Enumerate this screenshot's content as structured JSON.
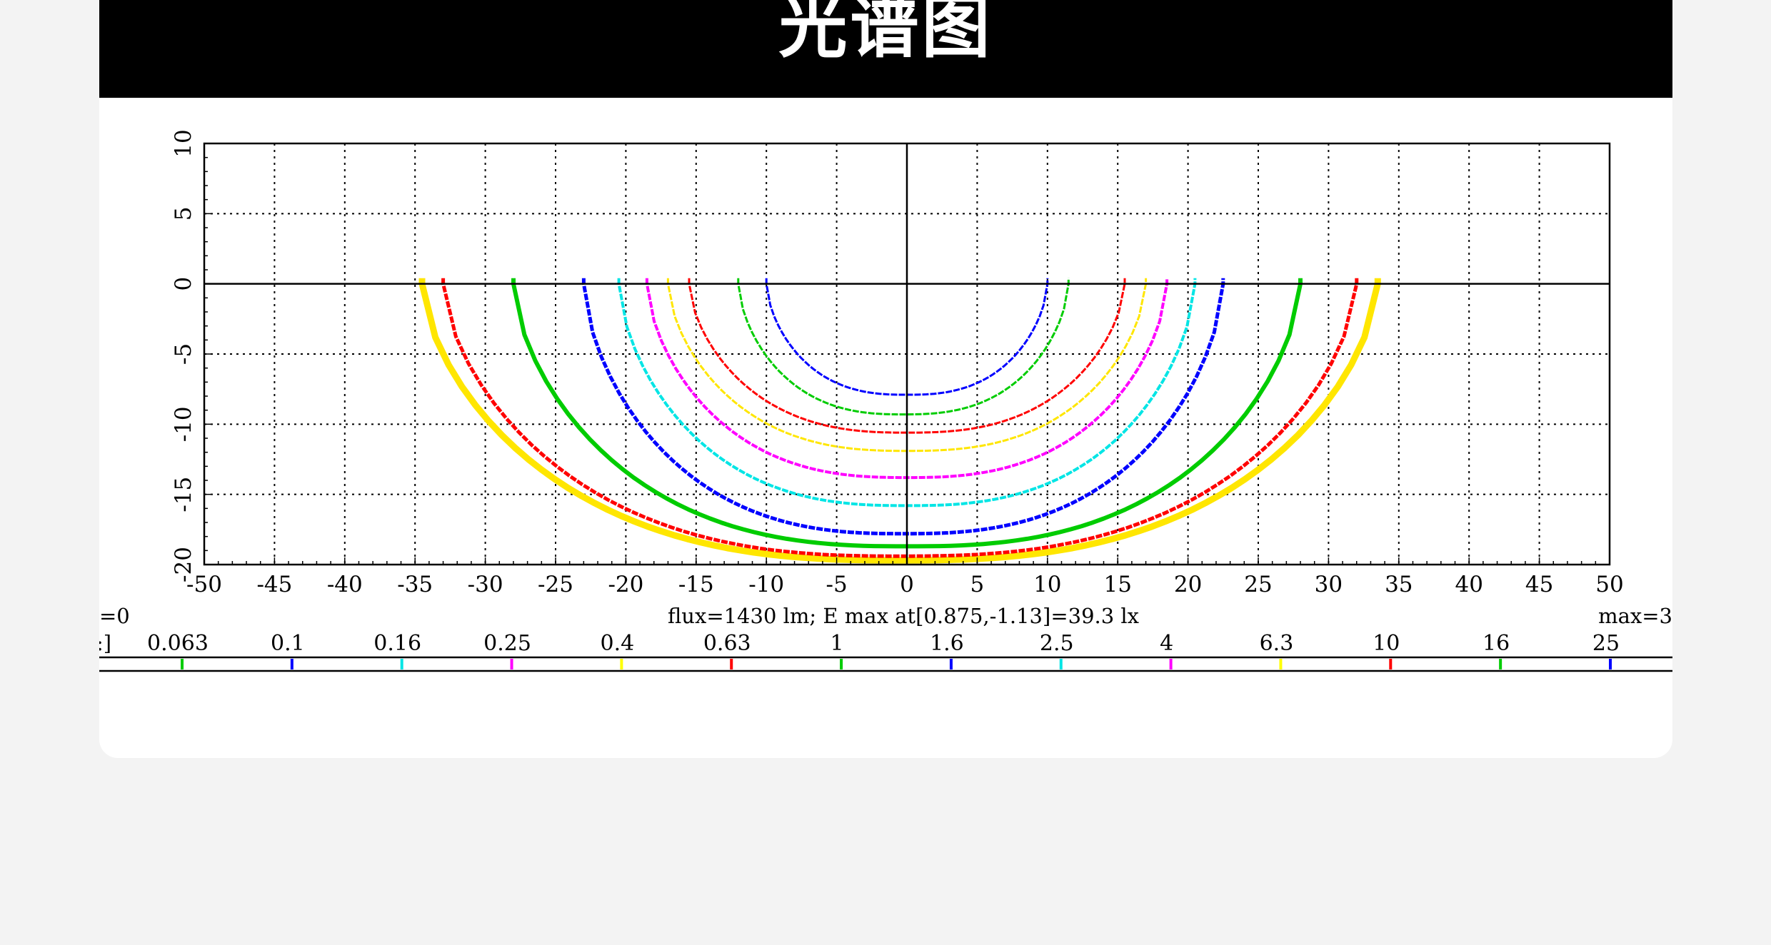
{
  "header": {
    "title": "光谱图"
  },
  "chart_data": {
    "type": "contour",
    "xlim": [
      -50,
      50
    ],
    "ylim": [
      -20,
      10
    ],
    "x_ticks": [
      -50,
      -45,
      -40,
      -35,
      -30,
      -25,
      -20,
      -15,
      -10,
      -5,
      0,
      5,
      10,
      15,
      20,
      25,
      30,
      35,
      40,
      45,
      50
    ],
    "y_ticks": [
      -20,
      -15,
      -10,
      -5,
      0,
      5,
      10
    ],
    "grid": true,
    "info_left": "=0",
    "info_center": "flux=1430 lm; E max at[0.875,-1.13]=39.3 lx",
    "info_right": "max=3",
    "legend_prefix": ":]",
    "legend_levels": [
      {
        "label": "0.063",
        "color": "#00cc00"
      },
      {
        "label": "0.1",
        "color": "#0000ff"
      },
      {
        "label": "0.16",
        "color": "#00e5e5"
      },
      {
        "label": "0.25",
        "color": "#ff00ff"
      },
      {
        "label": "0.4",
        "color": "#ffff00"
      },
      {
        "label": "0.63",
        "color": "#ff0000"
      },
      {
        "label": "1",
        "color": "#00cc00"
      },
      {
        "label": "1.6",
        "color": "#0000ff"
      },
      {
        "label": "2.5",
        "color": "#00e5e5"
      },
      {
        "label": "4",
        "color": "#ff00ff"
      },
      {
        "label": "6.3",
        "color": "#ffff00"
      },
      {
        "label": "10",
        "color": "#ff0000"
      },
      {
        "label": "16",
        "color": "#00cc00"
      },
      {
        "label": "25",
        "color": "#0000ff"
      }
    ],
    "contours": [
      {
        "color": "#ffe600",
        "x_extent": [
          -34.5,
          33.5
        ],
        "y_bottom": -19.7,
        "width": 9
      },
      {
        "color": "#ff0000",
        "x_extent": [
          -33,
          32
        ],
        "y_bottom": -19.4,
        "width": 5
      },
      {
        "color": "#00cc00",
        "x_extent": [
          -28,
          28
        ],
        "y_bottom": -18.7,
        "width": 6
      },
      {
        "color": "#0000ff",
        "x_extent": [
          -23,
          22.5
        ],
        "y_bottom": -17.8,
        "width": 5
      },
      {
        "color": "#00e5e5",
        "x_extent": [
          -20.5,
          20.5
        ],
        "y_bottom": -15.8,
        "width": 4
      },
      {
        "color": "#ff00ff",
        "x_extent": [
          -18.5,
          18.5
        ],
        "y_bottom": -13.8,
        "width": 4
      },
      {
        "color": "#ffe600",
        "x_extent": [
          -17,
          17
        ],
        "y_bottom": -11.9,
        "width": 3
      },
      {
        "color": "#ff0000",
        "x_extent": [
          -15.5,
          15.5
        ],
        "y_bottom": -10.6,
        "width": 3
      },
      {
        "color": "#00cc00",
        "x_extent": [
          -12,
          11.5
        ],
        "y_bottom": -9.3,
        "width": 3
      },
      {
        "color": "#0000ff",
        "x_extent": [
          -10,
          10
        ],
        "y_bottom": -7.9,
        "width": 3
      }
    ]
  }
}
